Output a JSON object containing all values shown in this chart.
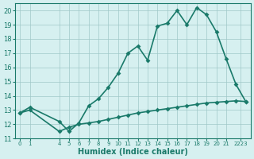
{
  "xlabel": "Humidex (Indice chaleur)",
  "bg_color": "#d6f0f0",
  "grid_color": "#a0c8c8",
  "line_color": "#1a7a6a",
  "xlim": [
    -0.5,
    23.5
  ],
  "ylim": [
    11,
    20.5
  ],
  "yticks": [
    11,
    12,
    13,
    14,
    15,
    16,
    17,
    18,
    19,
    20
  ],
  "xtick_positions": [
    0,
    1,
    4,
    5,
    6,
    7,
    8,
    9,
    10,
    11,
    12,
    13,
    14,
    15,
    16,
    17,
    18,
    19,
    20,
    21,
    22.5
  ],
  "xtick_labels": [
    "0",
    "1",
    "4",
    "5",
    "6",
    "7",
    "8",
    "9",
    "10",
    "11",
    "12",
    "13",
    "14",
    "15",
    "16",
    "17",
    "18",
    "19",
    "20",
    "21",
    "2223"
  ],
  "series1_x": [
    0,
    1,
    4,
    5,
    6,
    7,
    8,
    9,
    10,
    11,
    12,
    13,
    14,
    15,
    16,
    17,
    18,
    19,
    20,
    21,
    22,
    23
  ],
  "series1_y": [
    12.8,
    13.2,
    12.2,
    11.5,
    12.1,
    13.3,
    13.8,
    14.6,
    15.6,
    17.0,
    17.5,
    16.5,
    18.9,
    19.1,
    20.0,
    19.0,
    20.2,
    19.7,
    18.5,
    16.6,
    14.8,
    13.6
  ],
  "series2_x": [
    0,
    1,
    4,
    5,
    6,
    7,
    8,
    9,
    10,
    11,
    12,
    13,
    14,
    15,
    16,
    17,
    18,
    19,
    20,
    21,
    22,
    23
  ],
  "series2_y": [
    12.8,
    13.0,
    11.5,
    11.8,
    12.0,
    12.1,
    12.2,
    12.35,
    12.5,
    12.65,
    12.8,
    12.9,
    13.0,
    13.1,
    13.2,
    13.3,
    13.4,
    13.5,
    13.55,
    13.6,
    13.65,
    13.6
  ],
  "marker_size": 3,
  "line_width": 1.2
}
